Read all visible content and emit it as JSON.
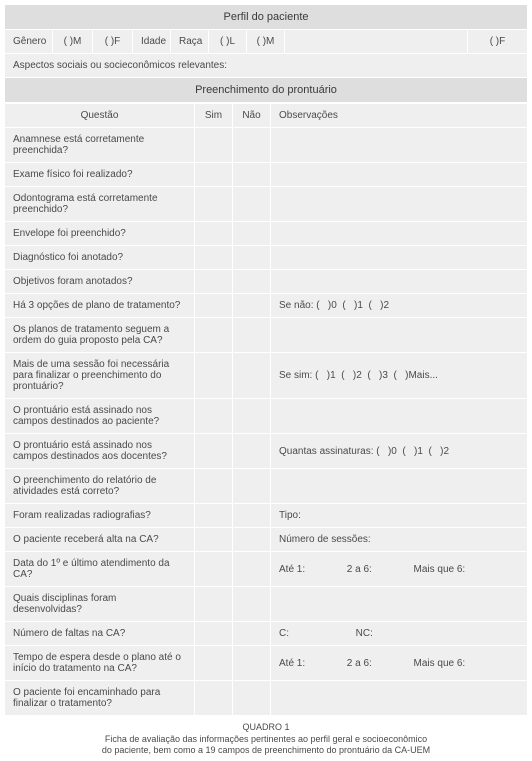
{
  "patient_profile": {
    "title": "Perfil do paciente",
    "gender_label": "Gênero",
    "opt_m": "(   )M",
    "opt_f": "(   )F",
    "age_label": "Idade",
    "race_label": "Raça",
    "opt_l": "(   )L",
    "opt_m2": "(   )M",
    "opt_f2": "(   )F",
    "aspects": "Aspectos sociais ou socieconômicos relevantes:"
  },
  "record": {
    "title": "Preenchimento do prontuário",
    "col_question": "Questão",
    "col_yes": "Sim",
    "col_no": "Não",
    "col_obs": "Observações"
  },
  "rows": {
    "r0": {
      "q": "Anamnese está corretamente preenchida?",
      "o": ""
    },
    "r1": {
      "q": "Exame físico foi realizado?",
      "o": ""
    },
    "r2": {
      "q": "Odontograma está corretamente preenchido?",
      "o": ""
    },
    "r3": {
      "q": "Envelope foi preenchido?",
      "o": ""
    },
    "r4": {
      "q": "Diagnóstico foi anotado?",
      "o": ""
    },
    "r5": {
      "q": "Objetivos foram anotados?",
      "o": ""
    },
    "r6": {
      "q": "Há 3 opções de plano de tratamento?",
      "o": "Se não: (   )0  (   )1  (   )2"
    },
    "r7": {
      "q": "Os planos de tratamento seguem a ordem do guia proposto pela CA?",
      "o": ""
    },
    "r8": {
      "q": "Mais de uma sessão foi necessária para finalizar o preenchimento do prontuário?",
      "o": "Se sim: (   )1  (   )2  (   )3  (   )Mais..."
    },
    "r9": {
      "q": "O prontuário está assinado nos campos destinados ao paciente?",
      "o": ""
    },
    "r10": {
      "q": "O prontuário está assinado nos campos destinados aos docentes?",
      "o": "Quantas assinaturas: (   )0  (   )1  (   )2"
    },
    "r11": {
      "q": "O preenchimento do relatório de atividades está correto?",
      "o": ""
    },
    "r12": {
      "q": "Foram realizadas radiografias?",
      "o": "Tipo:"
    },
    "r13": {
      "q": "O paciente receberá alta na CA?",
      "o": "Número de sessões:"
    },
    "r14": {
      "q": "Data do 1º e último atendimento da CA?",
      "o": "Até 1:               2 a 6:               Mais que 6:"
    },
    "r15": {
      "q": "Quais disciplinas foram desenvolvidas?",
      "o": ""
    },
    "r16": {
      "q": "Número de faltas na CA?",
      "o": "C:                        NC:"
    },
    "r17": {
      "q": "Tempo de espera desde o plano até o início do tratamento na CA?",
      "o": "Até 1:               2 a 6:               Mais que 6:"
    },
    "r18": {
      "q": "O paciente foi encaminhado para finalizar o tratamento?",
      "o": ""
    }
  },
  "caption": {
    "line1": "QUADRO 1",
    "line2": "Ficha de avaliação das informações pertinentes ao perfil geral e socioeconômico",
    "line3": "do paciente, bem como a 19 campos de preenchimento do prontuário da CA-UEM"
  },
  "style": {
    "header_bg": "#dedede",
    "row_bg": "#efefef",
    "border_color": "#ffffff",
    "text_color": "#4a4a4a",
    "font_size_body": 10,
    "font_size_header": 11,
    "font_size_caption": 9
  }
}
